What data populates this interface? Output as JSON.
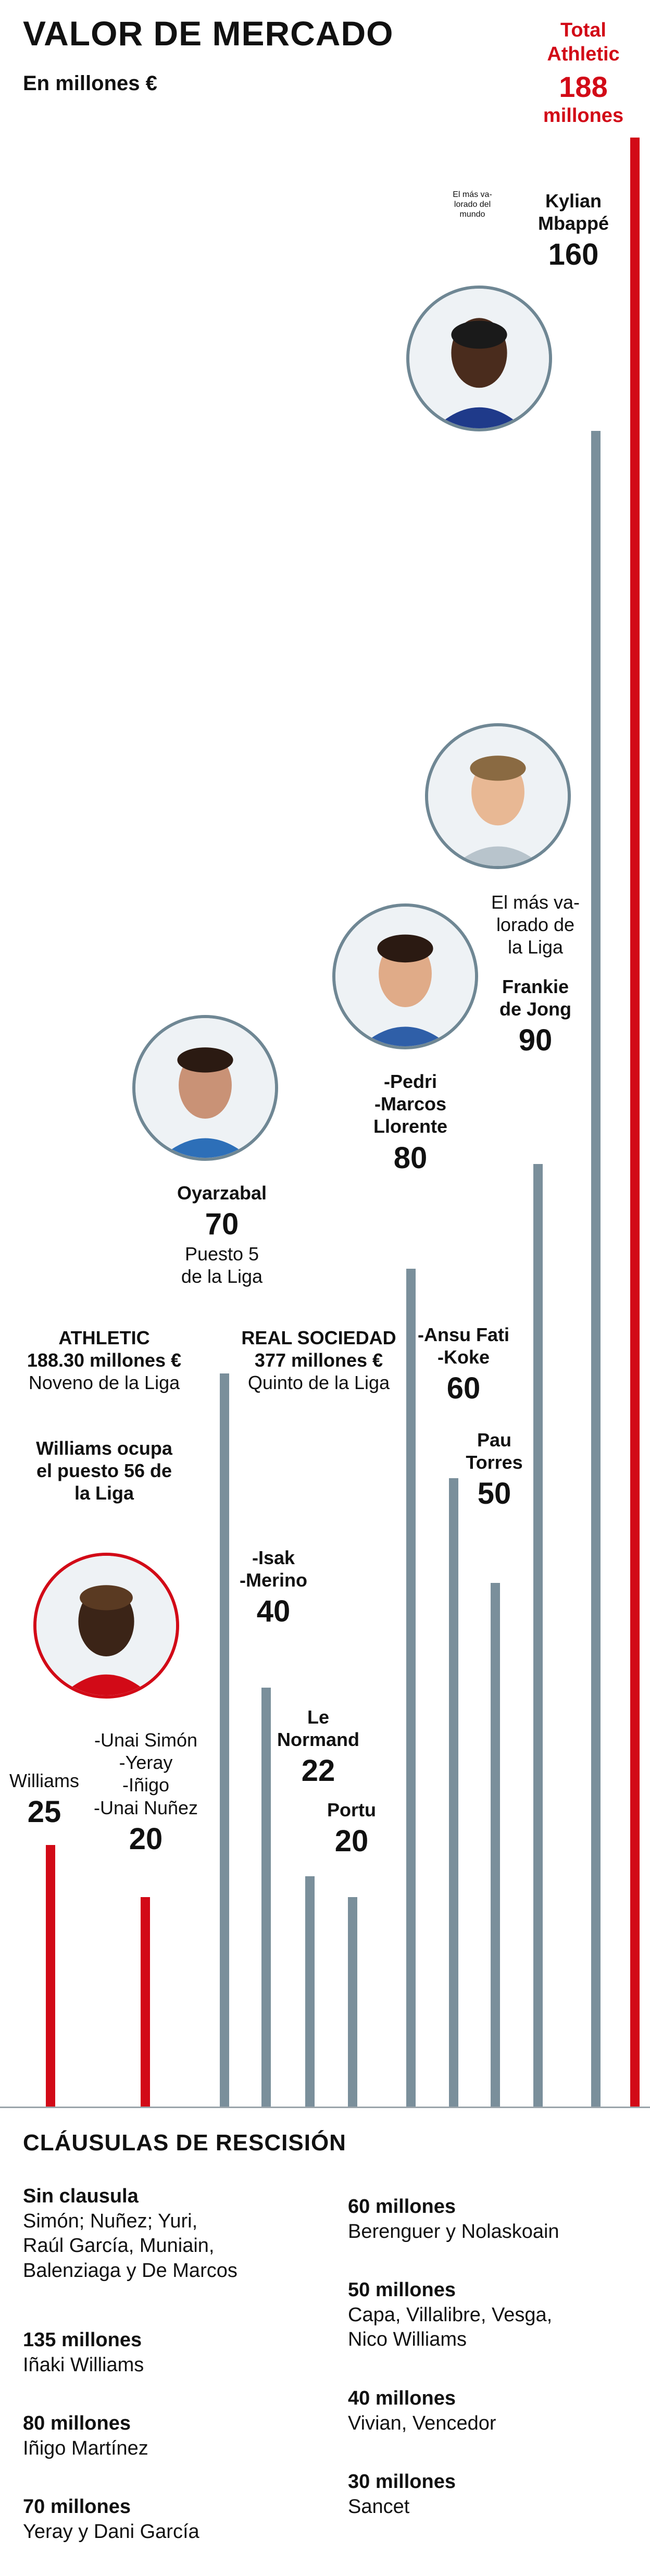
{
  "header": {
    "title": "VALOR DE MERCADO",
    "subtitle": "En millones €"
  },
  "total": {
    "line1": "Total",
    "line2": "Athletic",
    "value": "188",
    "unit": "millones"
  },
  "texts": {
    "mbappe": {
      "note": "El más va-\nlorado del\nmundo",
      "label": "Kylian\nMbappé",
      "value": "160"
    },
    "dejong": {
      "note": "El más va-\nlorado de\nla Liga",
      "label": "Frankie\nde Jong",
      "value": "90"
    },
    "pedri": {
      "label": "-Pedri\n-Marcos\nLlorente",
      "value": "80"
    },
    "oyarzabal": {
      "label": "Oyarzabal",
      "value": "70",
      "note": "Puesto 5\nde la Liga"
    },
    "athletic": {
      "title": "ATHLETIC",
      "amount": "188.30 millones €",
      "note": "Noveno de la Liga"
    },
    "realsociedad": {
      "title": "REAL SOCIEDAD",
      "amount": "377 millones €",
      "note": "Quinto de la Liga"
    },
    "williams_rank": "Williams ocupa\nel puesto 56 de\nla Liga",
    "ansu": {
      "label": "-Ansu Fati\n-Koke",
      "value": "60"
    },
    "pau": {
      "label": "Pau\nTorres",
      "value": "50"
    },
    "isak": {
      "label": "-Isak\n-Merino",
      "value": "40"
    },
    "lenormand": {
      "label": "Le\nNormand",
      "value": "22"
    },
    "portu": {
      "label": "Portu",
      "value": "20"
    },
    "williams": {
      "label": "Williams",
      "value": "25"
    },
    "unai": {
      "label": "-Unai Simón\n-Yeray\n-Iñigo\n-Unai Nuñez",
      "value": "20"
    }
  },
  "colors": {
    "athletic": "#d20a17",
    "other": "#7a8f9b"
  },
  "icons": [
    "mbappe-portrait-icon",
    "dejong-portrait-icon",
    "pedri-portrait-icon",
    "oyarzabal-portrait-icon",
    "williams-portrait-icon"
  ],
  "chart_data": {
    "type": "bar",
    "title": "VALOR DE MERCADO",
    "ylabel": "En millones €",
    "ylim": [
      0,
      188
    ],
    "categories": [
      "Williams",
      "-Unai Simón -Yeray -Iñigo -Unai Nuñez",
      "Oyarzabal",
      "-Isak -Merino",
      "Le Normand",
      "Portu",
      "-Pedri -Marcos Llorente",
      "-Ansu Fati -Koke",
      "Pau Torres",
      "Frankie de Jong",
      "Kylian Mbappé",
      "Total Athletic"
    ],
    "values": [
      25,
      20,
      70,
      40,
      22,
      20,
      80,
      60,
      50,
      90,
      160,
      188
    ],
    "bar_colors": [
      "#d20a17",
      "#d20a17",
      "#7a8f9b",
      "#7a8f9b",
      "#7a8f9b",
      "#7a8f9b",
      "#7a8f9b",
      "#7a8f9b",
      "#7a8f9b",
      "#7a8f9b",
      "#7a8f9b",
      "#d20a17"
    ]
  },
  "clauses": {
    "title": "CLÁUSULAS DE RESCISIÓN",
    "left": [
      {
        "title": "Sin clausula",
        "body": "Simón; Nuñez; Yuri,\nRaúl García, Muniain,\nBalenziaga y De Marcos"
      },
      {
        "title": "135 millones",
        "body": "Iñaki Williams"
      },
      {
        "title": "80 millones",
        "body": "Iñigo Martínez"
      },
      {
        "title": "70 millones",
        "body": "Yeray y Dani García"
      }
    ],
    "right": [
      {
        "title": "60 millones",
        "body": "Berenguer y Nolaskoain"
      },
      {
        "title": "50 millones",
        "body": "Capa, Villalibre, Vesga,\nNico Williams"
      },
      {
        "title": "40 millones",
        "body": "Vivian, Vencedor"
      },
      {
        "title": "30 millones",
        "body": "Sancet"
      }
    ]
  }
}
